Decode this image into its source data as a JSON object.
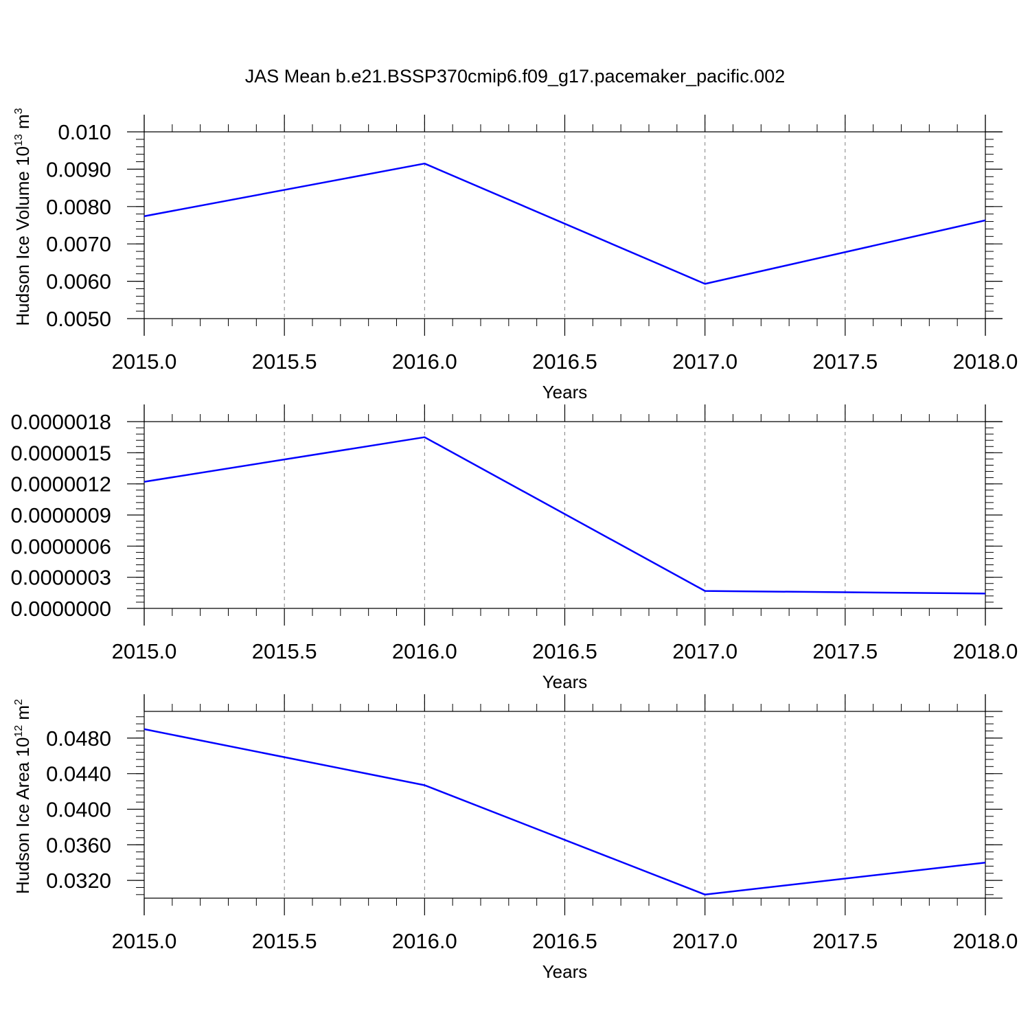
{
  "title": "JAS Mean b.e21.BSSP370cmip6.f09_g17.pacemaker_pacific.002",
  "line_color": "#0000ff",
  "grid_color": "#808080",
  "chart_data": [
    {
      "type": "line",
      "xlabel": "Years",
      "ylabel": "Hudson Ice Volume 10",
      "ylabel_sup1": "13",
      "ylabel_mid": " m",
      "ylabel_sup2": "3",
      "xlim": [
        2015.0,
        2018.0
      ],
      "ylim": [
        0.005,
        0.01
      ],
      "xticks": [
        "2015.0",
        "2015.5",
        "2016.0",
        "2016.5",
        "2017.0",
        "2017.5",
        "2018.0"
      ],
      "yticks": [
        "0.0050",
        "0.0060",
        "0.0070",
        "0.0080",
        "0.0090",
        "0.010"
      ],
      "ytick_values": [
        0.005,
        0.006,
        0.007,
        0.008,
        0.009,
        0.01
      ],
      "grid": "vertical dashed",
      "x": [
        2015,
        2016,
        2017,
        2018
      ],
      "series": [
        {
          "values": [
            0.00774,
            0.00915,
            0.00593,
            0.00763
          ]
        }
      ]
    },
    {
      "type": "line",
      "xlabel": "Years",
      "ylabel": "",
      "ylabel_sup1": "",
      "ylabel_mid": "",
      "ylabel_sup2": "",
      "xlim": [
        2015.0,
        2018.0
      ],
      "ylim": [
        0.0,
        1.8e-06
      ],
      "xticks": [
        "2015.0",
        "2015.5",
        "2016.0",
        "2016.5",
        "2017.0",
        "2017.5",
        "2018.0"
      ],
      "yticks": [
        "0.0000000",
        "0.0000003",
        "0.0000006",
        "0.0000009",
        "0.0000012",
        "0.0000015",
        "0.0000018"
      ],
      "ytick_values": [
        0.0,
        3e-07,
        6e-07,
        9e-07,
        1.2e-06,
        1.5e-06,
        1.8e-06
      ],
      "grid": "vertical dashed",
      "x": [
        2015,
        2016,
        2017,
        2018
      ],
      "series": [
        {
          "values": [
            1.22e-06,
            1.65e-06,
            1.68e-07,
            1.43e-07
          ]
        }
      ]
    },
    {
      "type": "line",
      "xlabel": "Years",
      "ylabel": "Hudson Ice Area 10",
      "ylabel_sup1": "12",
      "ylabel_mid": " m",
      "ylabel_sup2": "2",
      "xlim": [
        2015.0,
        2018.0
      ],
      "ylim": [
        0.03,
        0.051
      ],
      "xticks": [
        "2015.0",
        "2015.5",
        "2016.0",
        "2016.5",
        "2017.0",
        "2017.5",
        "2018.0"
      ],
      "yticks": [
        "0.0320",
        "0.0360",
        "0.0400",
        "0.0440",
        "0.0480"
      ],
      "ytick_values": [
        0.032,
        0.036,
        0.04,
        0.044,
        0.048
      ],
      "grid": "vertical dashed",
      "x": [
        2015,
        2016,
        2017,
        2018
      ],
      "series": [
        {
          "values": [
            0.049,
            0.0427,
            0.0304,
            0.034
          ]
        }
      ]
    }
  ]
}
